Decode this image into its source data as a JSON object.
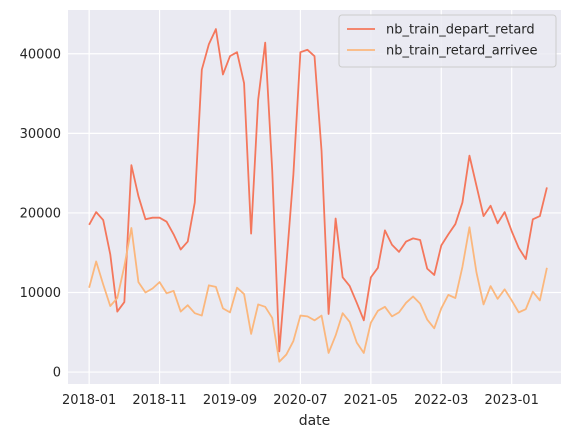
{
  "chart_data": {
    "type": "line",
    "title": "",
    "xlabel": "date",
    "ylabel": "",
    "x_ticks": [
      {
        "label": "2018-01",
        "index": 0
      },
      {
        "label": "2018-11",
        "index": 10
      },
      {
        "label": "2019-09",
        "index": 20
      },
      {
        "label": "2020-07",
        "index": 30
      },
      {
        "label": "2021-05",
        "index": 40
      },
      {
        "label": "2022-03",
        "index": 50
      },
      {
        "label": "2023-01",
        "index": 60
      }
    ],
    "y_ticks": [
      0,
      10000,
      20000,
      30000,
      40000
    ],
    "ylim": [
      -1500,
      45500
    ],
    "xlim_index": [
      -3,
      67
    ],
    "grid": true,
    "background": "#eaeaf2",
    "legend_position": "top-right",
    "series": [
      {
        "name": "nb_train_depart_retard",
        "color": "#f4775c",
        "values": [
          18500,
          20100,
          19100,
          14800,
          7600,
          8800,
          26000,
          22100,
          19200,
          19400,
          19400,
          18900,
          17300,
          15400,
          16400,
          21300,
          38000,
          41200,
          43100,
          37400,
          39700,
          40200,
          36300,
          17400,
          34200,
          41400,
          25300,
          2600,
          13500,
          24800,
          40200,
          40500,
          39700,
          27800,
          7300,
          19300,
          11900,
          10800,
          8700,
          6500,
          11900,
          13100,
          17800,
          16000,
          15100,
          16400,
          16800,
          16600,
          13000,
          12200,
          15900,
          17300,
          18600,
          21300,
          27200,
          23400,
          19600,
          20900,
          18700,
          20100,
          17700,
          15600,
          14200,
          19200,
          19600,
          23200
        ]
      },
      {
        "name": "nb_train_retard_arrivee",
        "color": "#fbb77d",
        "values": [
          10600,
          13900,
          11000,
          8300,
          9300,
          13300,
          18100,
          11300,
          10000,
          10500,
          11300,
          9900,
          10200,
          7600,
          8400,
          7400,
          7100,
          10900,
          10700,
          8000,
          7500,
          10600,
          9800,
          4800,
          8500,
          8200,
          6800,
          1300,
          2200,
          3900,
          7100,
          7000,
          6500,
          7100,
          2400,
          4600,
          7400,
          6300,
          3700,
          2400,
          6200,
          7700,
          8200,
          7000,
          7500,
          8700,
          9500,
          8600,
          6600,
          5500,
          8000,
          9700,
          9300,
          13200,
          18200,
          12500,
          8500,
          10800,
          9200,
          10400,
          9000,
          7500,
          7900,
          10100,
          9000,
          13100
        ]
      }
    ]
  }
}
